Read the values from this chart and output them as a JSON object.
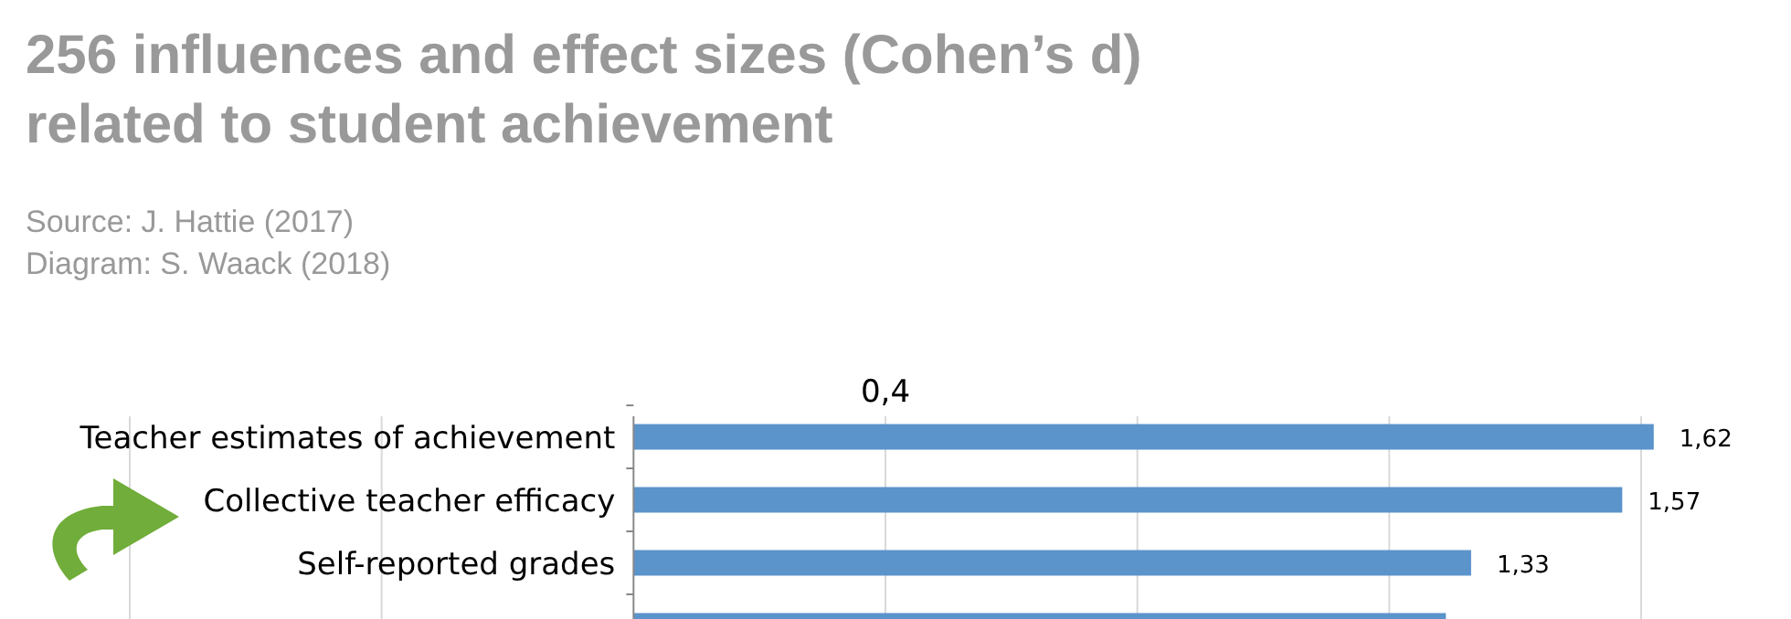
{
  "chart_data": {
    "type": "bar",
    "orientation": "horizontal",
    "title": "256 influences and effect sizes (Cohen’s d) related to student achievement",
    "annotations": [
      "Source: J. Hattie (2017)",
      "Diagram: S. Waack (2018)"
    ],
    "categories": [
      "Teacher estimates of achievement",
      "Collective teacher efficacy",
      "Self-reported grades",
      null
    ],
    "values": [
      1.62,
      1.57,
      1.33,
      1.29
    ],
    "color": "#5b93cb",
    "value_labels": [
      "1,62",
      "1,57",
      "1,33",
      null
    ],
    "xticks": [
      {
        "value": -0.8,
        "label": null
      },
      {
        "value": -0.4,
        "label": null
      },
      {
        "value": 0.8,
        "label": null
      },
      {
        "value": 1.2,
        "label": null
      },
      {
        "value": 1.6,
        "label": null
      }
    ],
    "tick_labels": "y",
    "grid": "x",
    "ref_lines": [
      {
        "axis": "x",
        "value": 0.4,
        "label": "0,4",
        "color": "#d9d9d9"
      }
    ]
  }
}
